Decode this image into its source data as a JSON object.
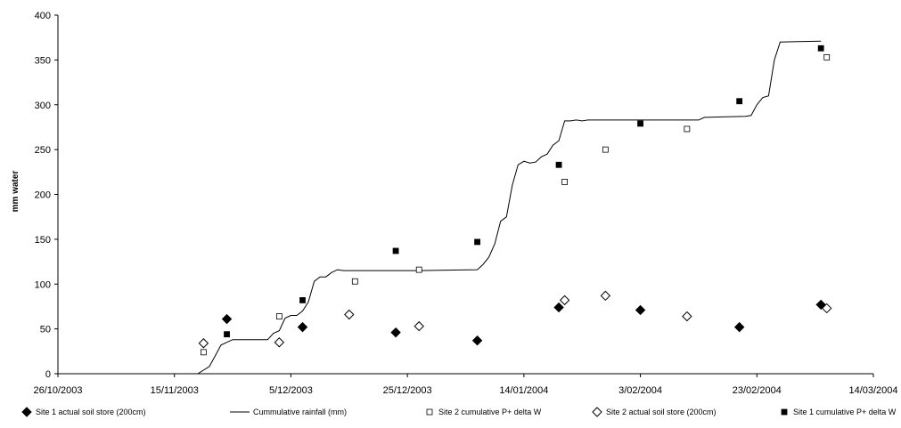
{
  "chart_data": {
    "type": "scatter",
    "title": "",
    "xlabel": "",
    "ylabel": "mm water",
    "xlim": [
      "26/10/2003",
      "14/03/2004"
    ],
    "ylim": [
      0,
      400
    ],
    "x_ticks": [
      "26/10/2003",
      "15/11/2003",
      "5/12/2003",
      "25/12/2003",
      "14/01/2004",
      "3/02/2004",
      "23/02/2004",
      "14/03/2004"
    ],
    "y_ticks": [
      "0",
      "50",
      "100",
      "150",
      "200",
      "250",
      "300",
      "350",
      "400"
    ],
    "grid": false,
    "legend_position": "bottom",
    "series": [
      {
        "name": "Site 1 actual soil store (200cm)",
        "marker": "filled-diamond",
        "x": [
          "2003-11-24",
          "2003-12-07",
          "2003-12-23",
          "2004-01-06",
          "2004-01-20",
          "2004-02-03",
          "2004-02-20",
          "2004-03-05"
        ],
        "y": [
          61,
          52,
          46,
          37,
          74,
          71,
          52,
          77
        ]
      },
      {
        "name": "Cummulative rainfall (mm)",
        "marker": "line",
        "x": [
          "2003-11-19",
          "2003-11-21",
          "2003-11-22",
          "2003-11-23",
          "2003-11-24",
          "2003-11-25",
          "2003-12-01",
          "2003-12-02",
          "2003-12-03",
          "2003-12-04",
          "2003-12-05",
          "2003-12-06",
          "2003-12-07",
          "2003-12-08",
          "2003-12-09",
          "2003-12-10",
          "2003-12-11",
          "2003-12-12",
          "2003-12-13",
          "2003-12-14",
          "2003-12-15",
          "2003-12-16",
          "2003-12-27",
          "2004-01-06",
          "2004-01-07",
          "2004-01-08",
          "2004-01-09",
          "2004-01-10",
          "2004-01-11",
          "2004-01-12",
          "2004-01-13",
          "2004-01-14",
          "2004-01-15",
          "2004-01-16",
          "2004-01-17",
          "2004-01-18",
          "2004-01-19",
          "2004-01-20",
          "2004-01-21",
          "2004-01-22",
          "2004-01-23",
          "2004-01-24",
          "2004-01-25",
          "2004-01-26",
          "2004-02-13",
          "2004-02-14",
          "2004-02-21",
          "2004-02-22",
          "2004-02-23",
          "2004-02-24",
          "2004-02-25",
          "2004-02-26",
          "2004-02-27",
          "2004-03-05"
        ],
        "y": [
          0,
          8,
          20,
          32,
          35,
          38,
          38,
          45,
          48,
          62,
          65,
          65,
          70,
          80,
          103,
          108,
          108,
          113,
          116,
          115,
          115,
          115,
          115,
          116,
          122,
          130,
          145,
          170,
          175,
          210,
          233,
          237,
          235,
          236,
          242,
          245,
          255,
          260,
          282,
          282,
          283,
          282,
          283,
          283,
          283,
          286,
          287,
          288,
          300,
          308,
          310,
          350,
          370,
          371
        ]
      },
      {
        "name": "Site 2 cumulative P+ delta W",
        "marker": "open-square",
        "x": [
          "2003-11-20",
          "2003-12-03",
          "2003-12-16",
          "2003-12-27",
          "2004-01-21",
          "2004-01-28",
          "2004-02-11",
          "2004-03-06"
        ],
        "y": [
          24,
          64,
          103,
          116,
          214,
          250,
          273,
          353
        ]
      },
      {
        "name": "Site 2 actual soil store (200cm)",
        "marker": "open-diamond",
        "x": [
          "2003-11-20",
          "2003-12-03",
          "2003-12-15",
          "2003-12-27",
          "2004-01-21",
          "2004-01-28",
          "2004-02-11",
          "2004-03-06"
        ],
        "y": [
          34,
          35,
          66,
          53,
          82,
          87,
          64,
          73
        ]
      },
      {
        "name": "Site 1 cumulative P+ delta W",
        "marker": "filled-square",
        "x": [
          "2003-11-24",
          "2003-12-07",
          "2003-12-23",
          "2004-01-06",
          "2004-01-20",
          "2004-02-03",
          "2004-02-20",
          "2004-03-05"
        ],
        "y": [
          44,
          82,
          137,
          147,
          233,
          279,
          304,
          363
        ]
      }
    ]
  }
}
